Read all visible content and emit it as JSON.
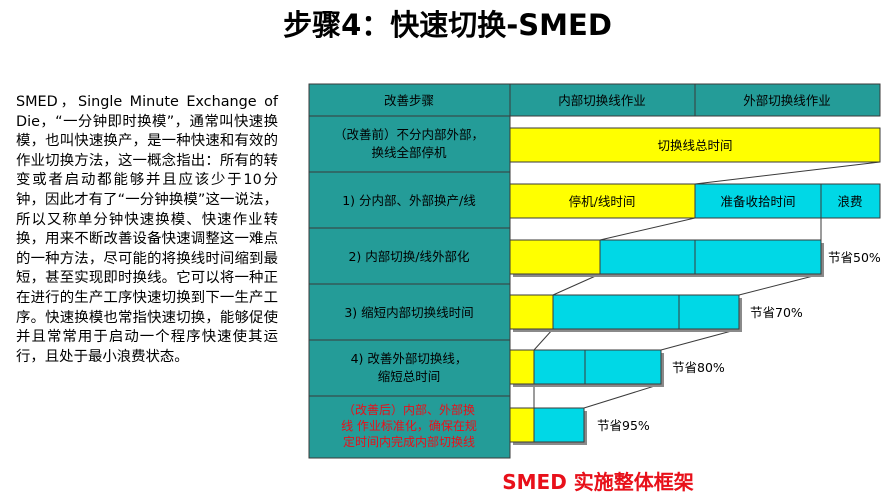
{
  "title": "步骤4：快速切换-SMED",
  "intro": "SMED，Single Minute Exchange of Die，“一分钟即时换模”，通常叫快速换模，也叫快速换产，是一种快速和有效的作业切换方法，这一概念指出：所有的转变或者启动都能够并且应该少于10分钟，因此才有了“一分钟换模”这一说法，所以又称单分钟快速换模、快速作业转换，用来不断改善设备快速调整这一难点的一种方法，尽可能的将换线时间缩到最短，甚至实现即时换线。它可以将一种正在进行的生产工序快速切换到下一生产工序。快速换模也常指快速切换，能够促使并且常常用于启动一个程序快速使其运行，且处于最小浪费状态。",
  "caption": "SMED 实施整体框架",
  "colors": {
    "teal": "#249c98",
    "internal": "#ffff00",
    "external": "#00d8e6",
    "red": "#e8101a"
  },
  "table": {
    "headers": [
      "改善步骤",
      "内部切换线作业",
      "外部切换线作业"
    ],
    "rows": [
      {
        "lines": [
          "（改善前）不分内部外部，",
          "换线全部停机"
        ],
        "bars": [
          "切换线总时间"
        ],
        "saving": ""
      },
      {
        "lines": [
          "1) 分内部、外部换产/线"
        ],
        "bars": [
          "停机/线时间",
          "准备收拾时间",
          "浪费"
        ],
        "saving": ""
      },
      {
        "lines": [
          "2) 内部切换/线外部化"
        ],
        "bars": [],
        "saving": "节省50%"
      },
      {
        "lines": [
          "3) 缩短内部切换线时间"
        ],
        "bars": [],
        "saving": "节省70%"
      },
      {
        "lines": [
          "4) 改善外部切换线，",
          "缩短总时间"
        ],
        "bars": [],
        "saving": "节省80%"
      },
      {
        "lines": [
          "（改善后）内部、外部换",
          "线 作业标准化，确保在规",
          "定时间内完成内部切换线"
        ],
        "bars": [],
        "saving": "节省95%"
      }
    ]
  }
}
